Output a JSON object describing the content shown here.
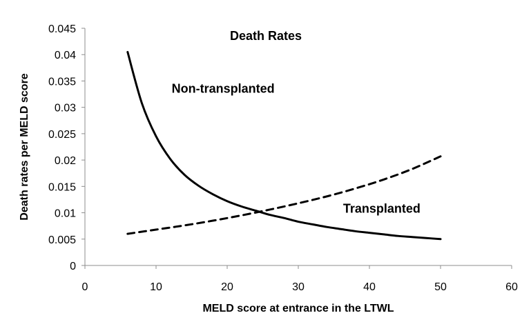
{
  "chart_data": {
    "type": "line",
    "title": "Death Rates",
    "xlabel": "MELD score at entrance in the LTWL",
    "ylabel": "Death rates per MELD score",
    "xlim": [
      0,
      60
    ],
    "ylim": [
      0,
      0.045
    ],
    "x_ticks": [
      "0",
      "10",
      "20",
      "30",
      "40",
      "50",
      "60"
    ],
    "y_ticks": [
      "0",
      "0.005",
      "0.01",
      "0.015",
      "0.02",
      "0.025",
      "0.03",
      "0.035",
      "0.04",
      "0.045"
    ],
    "grid": false,
    "legend": "none",
    "series": [
      {
        "name": "Non-transplanted",
        "style": "solid",
        "color": "#000000",
        "x": [
          6,
          8,
          10,
          12,
          14,
          16,
          18,
          20,
          22,
          24,
          26,
          28,
          30,
          32,
          34,
          36,
          38,
          40,
          42,
          44,
          46,
          48,
          50
        ],
        "y": [
          0.0405,
          0.0308,
          0.0245,
          0.0202,
          0.0172,
          0.0151,
          0.0135,
          0.0122,
          0.0112,
          0.0104,
          0.0096,
          0.009,
          0.0083,
          0.0078,
          0.0073,
          0.0069,
          0.0065,
          0.0062,
          0.0059,
          0.0056,
          0.0054,
          0.0052,
          0.005
        ]
      },
      {
        "name": "Transplanted",
        "style": "dashed",
        "color": "#000000",
        "x": [
          6,
          10,
          14,
          18,
          22,
          26,
          30,
          34,
          38,
          42,
          46,
          50
        ],
        "y": [
          0.006,
          0.0068,
          0.0076,
          0.0085,
          0.0095,
          0.0106,
          0.0118,
          0.0131,
          0.0146,
          0.0163,
          0.0183,
          0.0207
        ]
      }
    ],
    "annotations": [
      {
        "text": "Non-transplanted",
        "x": 12.2,
        "y": 0.0328
      },
      {
        "text": "Transplanted",
        "x": 36.3,
        "y": 0.01
      }
    ]
  }
}
